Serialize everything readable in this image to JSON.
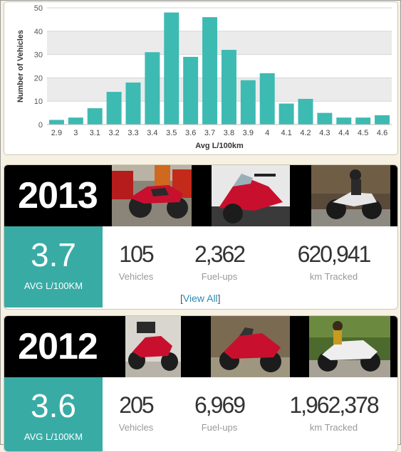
{
  "chart_data": {
    "type": "bar",
    "xlabel": "Avg L/100km",
    "ylabel": "Number of Vehicles",
    "ylim": [
      0,
      50
    ],
    "yticks": [
      0,
      10,
      20,
      30,
      40,
      50
    ],
    "categories": [
      "2.9",
      "3",
      "3.1",
      "3.2",
      "3.3",
      "3.4",
      "3.5",
      "3.6",
      "3.7",
      "3.8",
      "3.9",
      "4",
      "4.1",
      "4.2",
      "4.3",
      "4.4",
      "4.5",
      "4.6"
    ],
    "values": [
      2,
      3,
      7,
      14,
      18,
      31,
      48,
      29,
      46,
      32,
      19,
      22,
      9,
      11,
      5,
      3,
      3,
      4
    ],
    "bar_color": "#3dbab2",
    "grid": true
  },
  "cards": [
    {
      "year": "2013",
      "avg_value": "3.7",
      "avg_label": "AVG L/100KM",
      "stats": [
        {
          "value": "105",
          "label": "Vehicles"
        },
        {
          "value": "2,362",
          "label": "Fuel-ups"
        },
        {
          "value": "620,941",
          "label": "km Tracked"
        }
      ],
      "view_all_open": "[",
      "view_all_link": "View All",
      "view_all_close": "]"
    },
    {
      "year": "2012",
      "avg_value": "3.6",
      "avg_label": "AVG L/100KM",
      "stats": [
        {
          "value": "205",
          "label": "Vehicles"
        },
        {
          "value": "6,969",
          "label": "Fuel-ups"
        },
        {
          "value": "1,962,378",
          "label": "km Tracked"
        }
      ]
    }
  ],
  "colors": {
    "accent": "#39aba5",
    "link": "#2a8ab0",
    "motorcycle_red": "#c8102e"
  }
}
